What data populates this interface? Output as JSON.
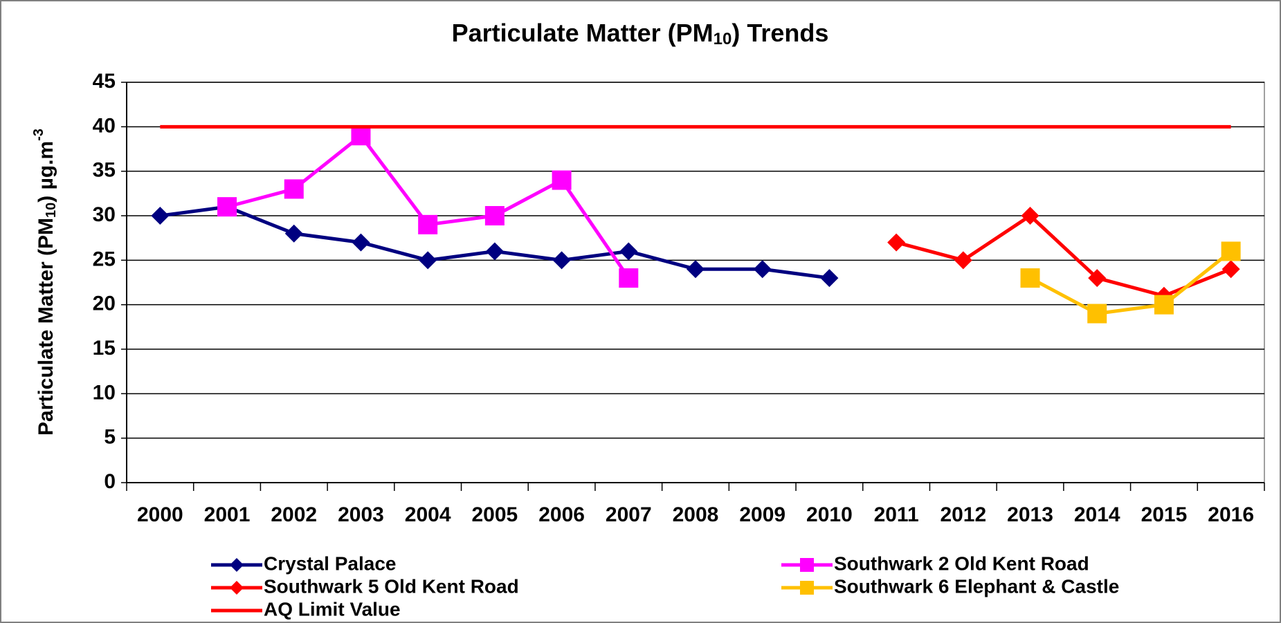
{
  "chart_data": {
    "type": "line",
    "title": [
      "Particulate Matter (PM",
      "10",
      ") Trends"
    ],
    "y_label": [
      "Particulate  Matter  (PM",
      "10",
      ")  µg.m",
      "-3"
    ],
    "categories": [
      "2000",
      "2001",
      "2002",
      "2003",
      "2004",
      "2005",
      "2006",
      "2007",
      "2008",
      "2009",
      "2010",
      "2011",
      "2012",
      "2013",
      "2014",
      "2015",
      "2016"
    ],
    "series": [
      {
        "name": "Crystal Palace",
        "color": "#000080",
        "marker": "diamond",
        "values": [
          30,
          31,
          28,
          27,
          25,
          26,
          25,
          26,
          24,
          24,
          23,
          null,
          null,
          null,
          null,
          null,
          null
        ]
      },
      {
        "name": "Southwark 2 Old Kent Road",
        "color": "#FF00FF",
        "marker": "square",
        "values": [
          null,
          31,
          33,
          39,
          29,
          30,
          34,
          23,
          null,
          null,
          null,
          null,
          null,
          null,
          null,
          null,
          null
        ]
      },
      {
        "name": "Southwark 5 Old Kent Road",
        "color": "#FF0000",
        "marker": "diamond",
        "values": [
          null,
          null,
          null,
          null,
          null,
          null,
          null,
          null,
          null,
          null,
          null,
          27,
          25,
          30,
          23,
          21,
          24
        ]
      },
      {
        "name": "Southwark 6 Elephant & Castle",
        "color": "#FFC000",
        "marker": "square",
        "values": [
          null,
          null,
          null,
          null,
          null,
          null,
          null,
          null,
          null,
          null,
          null,
          null,
          null,
          23,
          19,
          20,
          26
        ]
      },
      {
        "name": "AQ Limit Value",
        "color": "#FF0000",
        "marker": "none",
        "values": [
          40,
          40,
          40,
          40,
          40,
          40,
          40,
          40,
          40,
          40,
          40,
          40,
          40,
          40,
          40,
          40,
          40
        ]
      }
    ],
    "ylim": [
      0,
      45
    ],
    "yticks": [
      0,
      5,
      10,
      15,
      20,
      25,
      30,
      35,
      40,
      45
    ],
    "grid": true
  }
}
